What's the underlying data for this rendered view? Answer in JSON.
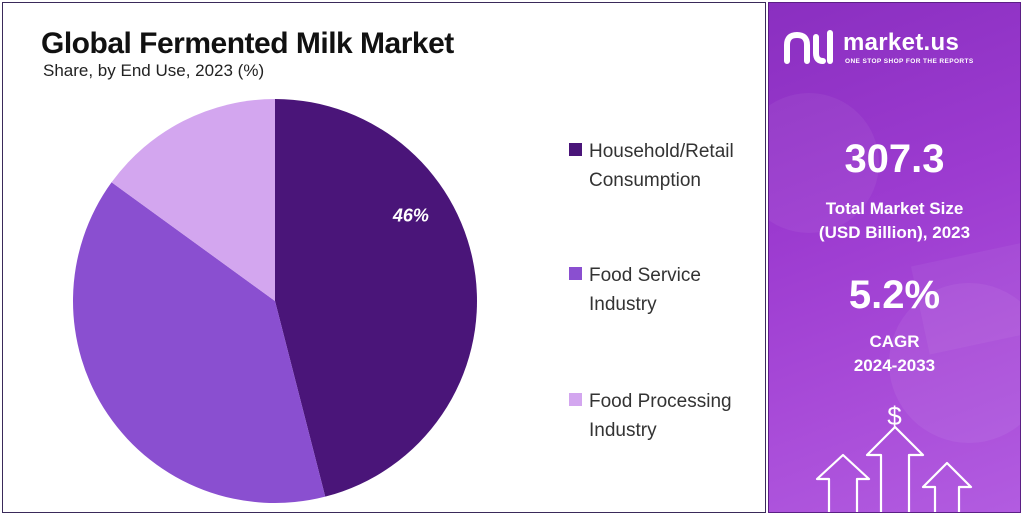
{
  "chart_data": {
    "type": "pie",
    "title": "Global Fermented Milk Market",
    "subtitle": "Share, by End Use, 2023 (%)",
    "categories": [
      "Household/Retail Consumption",
      "Food Service Industry",
      "Food Processing Industry"
    ],
    "values": [
      46,
      39,
      15
    ],
    "data_labels": [
      "46%",
      "",
      ""
    ],
    "colors": [
      "#4a1579",
      "#8a4fd0",
      "#d3a6ef"
    ],
    "legend_position": "right"
  },
  "legend": [
    {
      "line1": "Household/Retail",
      "line2": "Consumption",
      "color": "#4a1579"
    },
    {
      "line1": "Food Service",
      "line2": "Industry",
      "color": "#8a4fd0"
    },
    {
      "line1": "Food Processing",
      "line2": "Industry",
      "color": "#d3a6ef"
    }
  ],
  "sidebar": {
    "brand_name": "market.us",
    "brand_tagline": "ONE STOP SHOP FOR THE REPORTS",
    "market_size_value": "307.3",
    "market_size_label_1": "Total Market Size",
    "market_size_label_2": "(USD Billion), 2023",
    "cagr_value": "5.2%",
    "cagr_label_1": "CAGR",
    "cagr_label_2": "2024-2033",
    "currency_symbol": "$"
  }
}
